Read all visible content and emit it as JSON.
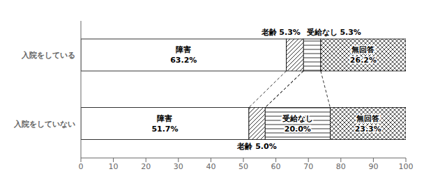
{
  "chart_data": {
    "type": "bar",
    "orientation": "horizontal",
    "stacked": true,
    "data_labels": true,
    "grid": false,
    "categories": [
      "入院をしている",
      "入院をしていない"
    ],
    "series": [
      {
        "name": "障害",
        "color": "#000000",
        "values": [
          63.2,
          51.7
        ],
        "value_labels": [
          "63.2%",
          "51.7%"
        ]
      },
      {
        "name": "老齢",
        "color": "#000000",
        "values": [
          5.3,
          5.0
        ],
        "value_labels": [
          null,
          null
        ]
      },
      {
        "name": "受給なし",
        "color": "#000000",
        "values": [
          5.3,
          20.0
        ],
        "value_labels": [
          null,
          "20.0%"
        ]
      },
      {
        "name": "無回答",
        "color": "#000000",
        "values": [
          26.2,
          23.3
        ],
        "value_labels": [
          "26.2%",
          "23.3%"
        ]
      }
    ],
    "annotations": [
      {
        "text": "老齢 5.3%",
        "category": "入院をしている",
        "series": "老齢"
      },
      {
        "text": "受給なし 5.3%",
        "category": "入院をしている",
        "series": "受給なし"
      },
      {
        "text": "老齢 5.0%",
        "category": "入院をしていない",
        "series": "老齢"
      }
    ],
    "xlim": [
      0,
      100
    ],
    "xticks": [
      0,
      10,
      20,
      30,
      40,
      50,
      60,
      70,
      80,
      90,
      100
    ]
  }
}
